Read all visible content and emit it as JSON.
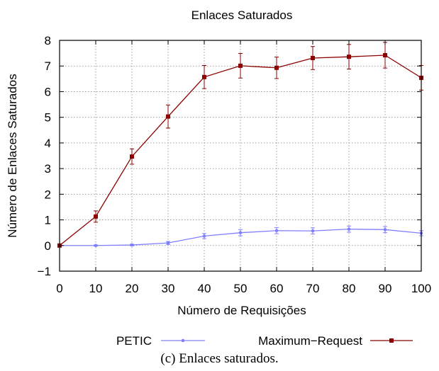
{
  "chart_data": {
    "type": "line",
    "title": "Enlaces Saturados",
    "xlabel": "Número de Requisições",
    "ylabel": "Número de Enlaces Saturados",
    "x": [
      0,
      10,
      20,
      30,
      40,
      50,
      60,
      70,
      80,
      90,
      100
    ],
    "xlim": [
      0,
      100
    ],
    "ylim": [
      -1,
      8
    ],
    "xticks": [
      "0",
      "10",
      "20",
      "30",
      "40",
      "50",
      "60",
      "70",
      "80",
      "90",
      "100"
    ],
    "yticks": [
      "−1",
      "0",
      "1",
      "2",
      "3",
      "4",
      "5",
      "6",
      "7",
      "8"
    ],
    "grid": true,
    "legend_position": "bottom",
    "series": [
      {
        "name": "PETIC",
        "color": "#8080ff",
        "marker": "circle",
        "values": [
          0,
          0,
          0.02,
          0.1,
          0.37,
          0.5,
          0.58,
          0.57,
          0.64,
          0.62,
          0.48
        ],
        "errors": [
          0,
          0.02,
          0.03,
          0.06,
          0.1,
          0.12,
          0.12,
          0.12,
          0.12,
          0.12,
          0.1
        ]
      },
      {
        "name": "Maximum−Request",
        "color": "#8b0000",
        "marker": "square",
        "values": [
          0,
          1.13,
          3.47,
          5.03,
          6.57,
          7.01,
          6.93,
          7.31,
          7.36,
          7.42,
          6.54
        ],
        "errors": [
          0,
          0.22,
          0.3,
          0.45,
          0.45,
          0.48,
          0.42,
          0.45,
          0.48,
          0.5,
          0.48
        ]
      }
    ]
  },
  "caption": "(c) Enlaces saturados."
}
